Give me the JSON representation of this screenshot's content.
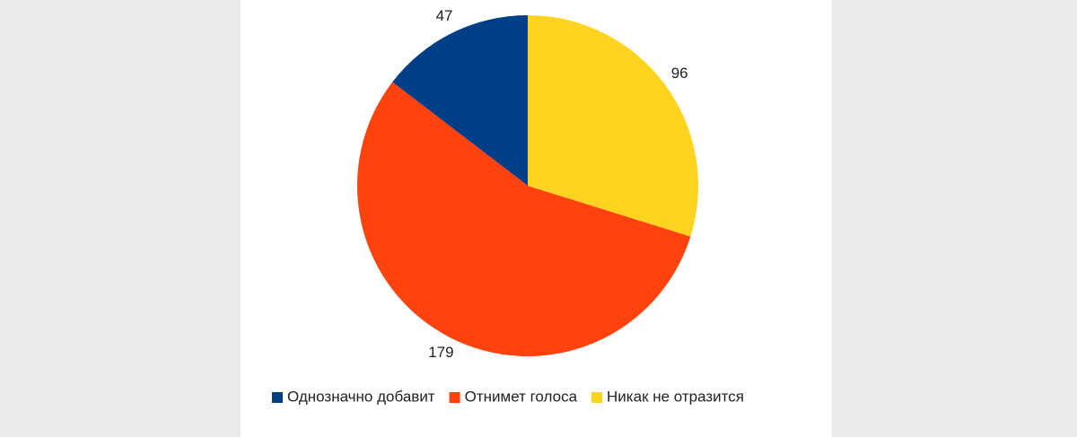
{
  "chart_data": {
    "type": "pie",
    "series": [
      {
        "name": "Однозначно добавит",
        "color": "#003f87",
        "values": [
          47
        ]
      },
      {
        "name": "Отнимет голоса",
        "color": "#ff420e",
        "values": [
          179
        ]
      },
      {
        "name": "Никак не отразится",
        "color": "#ffd320",
        "values": [
          96
        ]
      }
    ],
    "legend": "bottom"
  }
}
